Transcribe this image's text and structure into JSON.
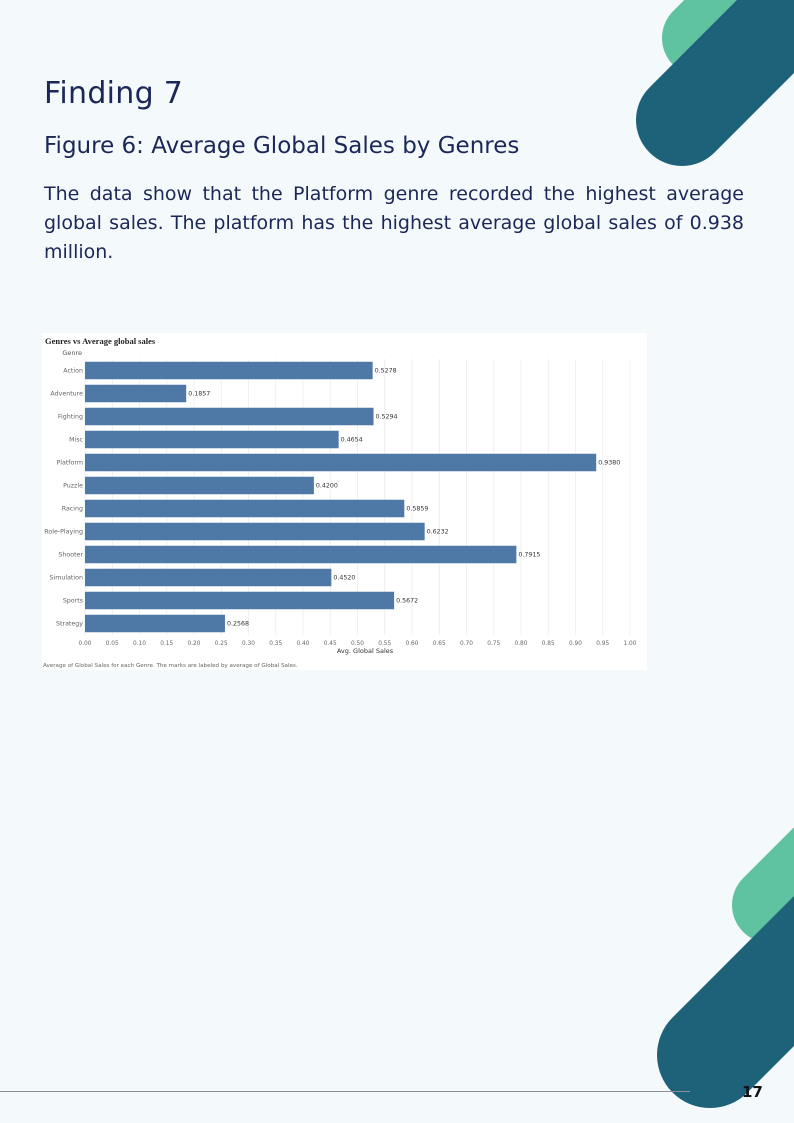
{
  "page": {
    "heading": "Finding 7",
    "figure_title": "Figure 6: Average Global Sales by Genres",
    "paragraph": "The data show that the Platform genre recorded the highest average global sales. The platform has the highest average global sales of 0.938 million.",
    "page_number": "17",
    "colors": {
      "text": "#1b2756",
      "bar": "#4e79a7",
      "shape_green": "#5fc3a1",
      "shape_teal": "#1e627a"
    }
  },
  "chart_data": {
    "type": "bar",
    "orientation": "horizontal",
    "title": "Genres vs Average global sales",
    "category_header": "Genre",
    "xlabel": "Avg. Global Sales",
    "caption": "Average of Global Sales for each Genre.  The marks are labeled by average of Global Sales.",
    "categories": [
      "Action",
      "Adventure",
      "Fighting",
      "Misc",
      "Platform",
      "Puzzle",
      "Racing",
      "Role-Playing",
      "Shooter",
      "Simulation",
      "Sports",
      "Strategy"
    ],
    "values": [
      0.5278,
      0.1857,
      0.5294,
      0.4654,
      0.938,
      0.42,
      0.5859,
      0.6232,
      0.7915,
      0.452,
      0.5672,
      0.2568
    ],
    "value_labels": [
      "0.5278",
      "0.1857",
      "0.5294",
      "0.4654",
      "0.9380",
      "0.4200",
      "0.5859",
      "0.6232",
      "0.7915",
      "0.4520",
      "0.5672",
      "0.2568"
    ],
    "xlim": [
      0,
      1.0
    ],
    "xticks": [
      "0.00",
      "0.05",
      "0.10",
      "0.15",
      "0.20",
      "0.25",
      "0.30",
      "0.35",
      "0.40",
      "0.45",
      "0.50",
      "0.55",
      "0.60",
      "0.65",
      "0.70",
      "0.75",
      "0.80",
      "0.85",
      "0.90",
      "0.95",
      "1.00"
    ],
    "grid": "vertical"
  }
}
